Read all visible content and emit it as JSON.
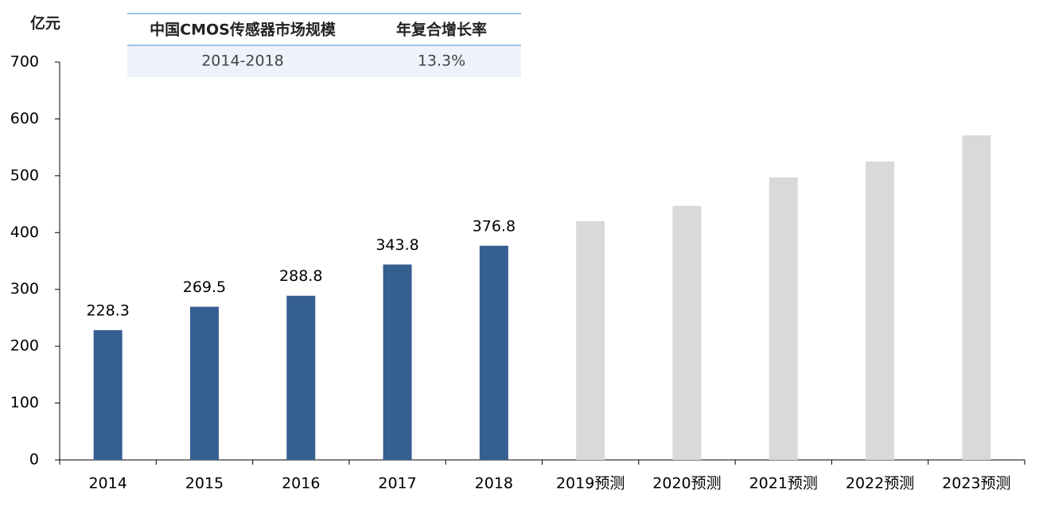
{
  "chart_data": {
    "type": "bar",
    "unit": "亿元",
    "categories": [
      "2014",
      "2015",
      "2016",
      "2017",
      "2018",
      "2019预测",
      "2020预测",
      "2021预测",
      "2022预测",
      "2023预测"
    ],
    "values": [
      228.3,
      269.5,
      288.8,
      343.8,
      376.8,
      420,
      447,
      497,
      525,
      571
    ],
    "value_labels": [
      "228.3",
      "269.5",
      "288.8",
      "343.8",
      "376.8",
      null,
      null,
      null,
      null,
      null
    ],
    "colors": [
      "#365f91",
      "#365f91",
      "#365f91",
      "#365f91",
      "#365f91",
      "#d9d9d9",
      "#d9d9d9",
      "#d9d9d9",
      "#d9d9d9",
      "#d9d9d9"
    ],
    "ylim": [
      0,
      700
    ],
    "yticks": [
      0,
      100,
      200,
      300,
      400,
      500,
      600,
      700
    ],
    "grid": false
  },
  "table": {
    "header": [
      "中国CMOS传感器市场规模",
      "年复合增长率"
    ],
    "rows": [
      [
        "2014-2018",
        "13.3%"
      ]
    ]
  }
}
